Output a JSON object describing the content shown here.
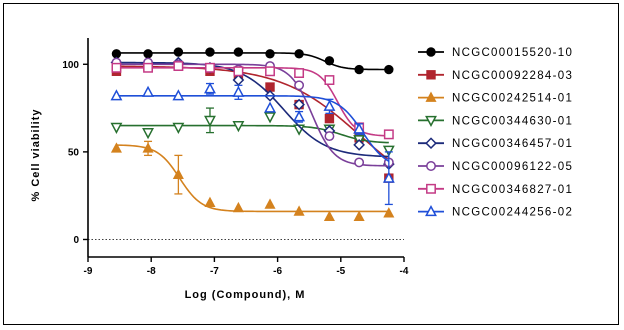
{
  "chart_data": {
    "type": "line",
    "title": "",
    "xlabel": "Log (Compound), M",
    "ylabel": "% Cell viability",
    "xlim": [
      -9,
      -4
    ],
    "ylim": [
      -10,
      115
    ],
    "xticks": [
      -9,
      -8,
      -7,
      -6,
      -5,
      -4
    ],
    "yticks": [
      0,
      50,
      100
    ],
    "reference_line_y": 0,
    "legend_position": "right",
    "grid": false,
    "series": [
      {
        "name": "NCGC00015520-10",
        "color": "#000000",
        "marker": "circle-filled",
        "x": [
          -8.55,
          -8.05,
          -7.57,
          -7.07,
          -6.62,
          -6.12,
          -5.66,
          -5.18,
          -4.71,
          -4.24
        ],
        "y": [
          106,
          106,
          107,
          107,
          107,
          106,
          106,
          102,
          97,
          97
        ],
        "error": [
          0,
          0,
          0,
          0,
          0,
          0,
          0,
          0,
          0,
          0
        ],
        "fit": {
          "top": 106.5,
          "bottom": 97,
          "logEC50": -5.25,
          "hill": 3
        }
      },
      {
        "name": "NCGC00092284-03",
        "color": "#b0252e",
        "marker": "square-filled",
        "x": [
          -8.55,
          -8.05,
          -7.57,
          -7.07,
          -6.62,
          -6.12,
          -5.66,
          -5.18,
          -4.71,
          -4.24
        ],
        "y": [
          96,
          99,
          99,
          96,
          93,
          87,
          77,
          69,
          58,
          35
        ],
        "error": [
          0,
          0,
          0,
          0,
          0,
          0,
          0,
          0,
          0,
          0
        ],
        "fit": {
          "top": 99,
          "bottom": 20,
          "logEC50": -4.7,
          "hill": 0.7
        }
      },
      {
        "name": "NCGC00242514-01",
        "color": "#d4821e",
        "marker": "triangle-up-filled",
        "x": [
          -8.55,
          -8.05,
          -7.57,
          -7.07,
          -6.62,
          -6.12,
          -5.66,
          -5.18,
          -4.71,
          -4.24
        ],
        "y": [
          52,
          52,
          37,
          21,
          18,
          20,
          16,
          13,
          13,
          15
        ],
        "error": [
          0,
          4,
          11,
          0,
          0,
          0,
          0,
          0,
          0,
          0
        ],
        "fit": {
          "top": 54,
          "bottom": 16,
          "logEC50": -7.55,
          "hill": 2.5
        }
      },
      {
        "name": "NCGC00344630-01",
        "color": "#27702f",
        "marker": "triangle-down-open",
        "x": [
          -8.55,
          -8.05,
          -7.57,
          -7.07,
          -6.62,
          -6.12,
          -5.66,
          -5.18,
          -4.71,
          -4.24
        ],
        "y": [
          64,
          61,
          64,
          68,
          65,
          70,
          63,
          63,
          57,
          51
        ],
        "error": [
          0,
          0,
          0,
          7,
          0,
          0,
          0,
          0,
          0,
          0
        ],
        "fit": {
          "top": 65,
          "bottom": 55,
          "logEC50": -5.0,
          "hill": 2
        }
      },
      {
        "name": "NCGC00346457-01",
        "color": "#1c2a7a",
        "marker": "diamond-open",
        "x": [
          -8.55,
          -8.05,
          -7.57,
          -7.07,
          -6.62,
          -6.12,
          -5.66,
          -5.18,
          -4.71,
          -4.24
        ],
        "y": [
          101,
          100,
          101,
          98,
          91,
          82,
          77,
          62,
          54,
          43
        ],
        "error": [
          0,
          0,
          0,
          0,
          0,
          0,
          0,
          0,
          0,
          0
        ],
        "fit": {
          "top": 101,
          "bottom": 47,
          "logEC50": -5.9,
          "hill": 1.3
        }
      },
      {
        "name": "NCGC00096122-05",
        "color": "#7a3f9a",
        "marker": "circle-open",
        "x": [
          -8.55,
          -8.05,
          -7.57,
          -7.07,
          -6.62,
          -6.12,
          -5.66,
          -5.18,
          -4.71,
          -4.24
        ],
        "y": [
          101,
          101,
          100,
          98,
          97,
          99,
          88,
          59,
          44,
          44
        ],
        "error": [
          0,
          0,
          0,
          0,
          0,
          0,
          0,
          0,
          0,
          0
        ],
        "fit": {
          "top": 100,
          "bottom": 42,
          "logEC50": -5.45,
          "hill": 2.5
        }
      },
      {
        "name": "NCGC00346827-01",
        "color": "#c43a85",
        "marker": "square-open",
        "x": [
          -8.55,
          -8.05,
          -7.57,
          -7.07,
          -6.62,
          -6.12,
          -5.66,
          -5.18,
          -4.71,
          -4.24
        ],
        "y": [
          98,
          98,
          99,
          98,
          96,
          96,
          95,
          91,
          64,
          60
        ],
        "error": [
          0,
          0,
          0,
          0,
          0,
          0,
          0,
          0,
          0,
          0
        ],
        "fit": {
          "top": 98,
          "bottom": 59,
          "logEC50": -5.05,
          "hill": 3
        }
      },
      {
        "name": "NCGC00244256-02",
        "color": "#1f4fd8",
        "marker": "triangle-up-open",
        "x": [
          -8.55,
          -8.05,
          -7.57,
          -7.07,
          -6.62,
          -6.12,
          -5.66,
          -5.18,
          -4.71,
          -4.24
        ],
        "y": [
          82,
          84,
          82,
          86,
          84,
          75,
          70,
          76,
          63,
          35
        ],
        "error": [
          0,
          0,
          0,
          3,
          4,
          0,
          3,
          4,
          3,
          15
        ],
        "fit": {
          "top": 82,
          "bottom": 40,
          "logEC50": -4.65,
          "hill": 2.2
        }
      }
    ]
  }
}
